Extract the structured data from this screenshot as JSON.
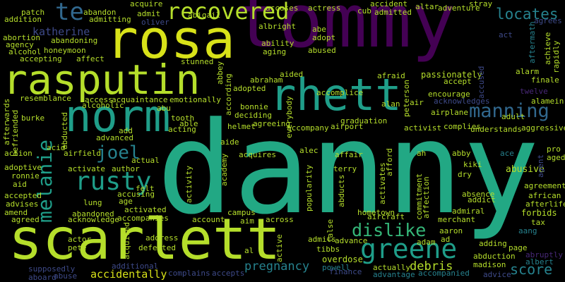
{
  "colors": {
    "background": "#000000",
    "yellow": "#d8e219",
    "lime": "#b5de2b",
    "green": "#35b779",
    "seagreen": "#22a884",
    "teal": "#1f9e89",
    "teal_blue": "#26828e",
    "blue": "#31688e",
    "indigo": "#3e4a89",
    "purple": "#482878",
    "dark_purple": "#440154"
  },
  "words": [
    {
      "text": "tommy",
      "color": "dark_purple"
    },
    {
      "text": "danny",
      "color": "seagreen"
    },
    {
      "text": "rosa",
      "color": "yellow"
    },
    {
      "text": "scarlett",
      "color": "lime"
    },
    {
      "text": "rasputin",
      "color": "lime"
    },
    {
      "text": "rhett",
      "color": "teal"
    },
    {
      "text": "norm",
      "color": "teal"
    },
    {
      "text": "recovered",
      "color": "lime"
    },
    {
      "text": "greene",
      "color": "teal"
    },
    {
      "text": "rusty",
      "color": "teal"
    },
    {
      "text": "melanie",
      "color": "teal"
    },
    {
      "text": "te",
      "color": "blue"
    },
    {
      "text": "manning",
      "color": "blue"
    },
    {
      "text": "joel",
      "color": "teal_blue"
    },
    {
      "text": "dislike",
      "color": "green"
    },
    {
      "text": "locates",
      "color": "teal_blue"
    },
    {
      "text": "katherine",
      "color": "indigo"
    },
    {
      "text": "pregnancy",
      "color": "teal_blue"
    },
    {
      "text": "score",
      "color": "teal_blue"
    },
    {
      "text": "debris",
      "color": "lime"
    },
    {
      "text": "accidentally",
      "color": "yellow"
    },
    {
      "text": "supposedly",
      "color": "indigo"
    },
    {
      "text": "aboard",
      "color": "indigo"
    },
    {
      "text": "abuse",
      "color": "indigo"
    },
    {
      "text": "additional",
      "color": "indigo"
    },
    {
      "text": "complains",
      "color": "indigo"
    },
    {
      "text": "accepts",
      "color": "indigo"
    },
    {
      "text": "overdose",
      "color": "lime"
    },
    {
      "text": "powell",
      "color": "teal_blue"
    },
    {
      "text": "finance",
      "color": "indigo"
    },
    {
      "text": "actually",
      "color": "lime"
    },
    {
      "text": "advantage",
      "color": "teal_blue"
    },
    {
      "text": "accompanied",
      "color": "teal_blue"
    },
    {
      "text": "advice",
      "color": "indigo"
    },
    {
      "text": "madison",
      "color": "lime"
    },
    {
      "text": "abduction",
      "color": "lime"
    },
    {
      "text": "adding",
      "color": "lime"
    },
    {
      "text": "page",
      "color": "lime"
    },
    {
      "text": "abruptly",
      "color": "purple"
    },
    {
      "text": "albert",
      "color": "teal_blue"
    },
    {
      "text": "aang",
      "color": "teal_blue"
    },
    {
      "text": "tax",
      "color": "lime"
    },
    {
      "text": "forbids",
      "color": "lime"
    },
    {
      "text": "afterlife",
      "color": "lime"
    },
    {
      "text": "african",
      "color": "lime"
    },
    {
      "text": "agreement",
      "color": "lime"
    },
    {
      "text": "abusive",
      "color": "lime"
    },
    {
      "text": "aged",
      "color": "lime"
    },
    {
      "text": "pro",
      "color": "lime"
    },
    {
      "text": "ace",
      "color": "teal_blue"
    },
    {
      "text": "agent",
      "color": "indigo"
    },
    {
      "text": "adult",
      "color": "lime"
    },
    {
      "text": "aggressive",
      "color": "lime"
    },
    {
      "text": "understands",
      "color": "lime"
    },
    {
      "text": "alamein",
      "color": "lime"
    },
    {
      "text": "twelve",
      "color": "purple"
    },
    {
      "text": "alarm",
      "color": "lime"
    },
    {
      "text": "finale",
      "color": "lime"
    },
    {
      "text": "rapidly",
      "color": "lime"
    },
    {
      "text": "achieve",
      "color": "lime"
    },
    {
      "text": "aftermath",
      "color": "teal_blue"
    },
    {
      "text": "agrees",
      "color": "indigo"
    },
    {
      "text": "act",
      "color": "indigo"
    },
    {
      "text": "adventure",
      "color": "lime"
    },
    {
      "text": "stray",
      "color": "lime"
    },
    {
      "text": "altar",
      "color": "lime"
    },
    {
      "text": "accident",
      "color": "lime"
    },
    {
      "text": "cub",
      "color": "lime"
    },
    {
      "text": "admitted",
      "color": "lime"
    },
    {
      "text": "actress",
      "color": "lime"
    },
    {
      "text": "accuses",
      "color": "lime"
    },
    {
      "text": "acquire",
      "color": "lime"
    },
    {
      "text": "admit",
      "color": "lime"
    },
    {
      "text": "admitting",
      "color": "lime"
    },
    {
      "text": "abigail",
      "color": "lime"
    },
    {
      "text": "abandon",
      "color": "lime"
    },
    {
      "text": "patch",
      "color": "lime"
    },
    {
      "text": "addition",
      "color": "lime"
    },
    {
      "text": "albright",
      "color": "lime"
    },
    {
      "text": "abe",
      "color": "lime"
    },
    {
      "text": "adopt",
      "color": "lime"
    },
    {
      "text": "abused",
      "color": "lime"
    },
    {
      "text": "ability",
      "color": "lime"
    },
    {
      "text": "aging",
      "color": "lime"
    },
    {
      "text": "abortion",
      "color": "lime"
    },
    {
      "text": "agency",
      "color": "lime"
    },
    {
      "text": "alcohol",
      "color": "lime"
    },
    {
      "text": "accepting",
      "color": "lime"
    },
    {
      "text": "abandoning",
      "color": "lime"
    },
    {
      "text": "honeymoon",
      "color": "lime"
    },
    {
      "text": "affect",
      "color": "lime"
    },
    {
      "text": "stunned",
      "color": "lime"
    },
    {
      "text": "abbey",
      "color": "lime"
    },
    {
      "text": "abraham",
      "color": "lime"
    },
    {
      "text": "aided",
      "color": "lime"
    },
    {
      "text": "adopted",
      "color": "lime"
    },
    {
      "text": "according",
      "color": "lime"
    },
    {
      "text": "afraid",
      "color": "lime"
    },
    {
      "text": "passionately",
      "color": "lime"
    },
    {
      "text": "accept",
      "color": "lime"
    },
    {
      "text": "accused",
      "color": "indigo"
    },
    {
      "text": "acknowledges",
      "color": "indigo"
    },
    {
      "text": "accomplice",
      "color": "lime"
    },
    {
      "text": "peterson",
      "color": "lime"
    },
    {
      "text": "encourage",
      "color": "lime"
    },
    {
      "text": "airplane",
      "color": "lime"
    },
    {
      "text": "alan",
      "color": "lime"
    },
    {
      "text": "air",
      "color": "lime"
    },
    {
      "text": "resemblance",
      "color": "lime"
    },
    {
      "text": "access",
      "color": "lime"
    },
    {
      "text": "acquaintance",
      "color": "lime"
    },
    {
      "text": "emotionally",
      "color": "lime"
    },
    {
      "text": "alcoholic",
      "color": "lime"
    },
    {
      "text": "abu",
      "color": "lime"
    },
    {
      "text": "bonnie",
      "color": "lime"
    },
    {
      "text": "deciding",
      "color": "lime"
    },
    {
      "text": "everybody",
      "color": "lime"
    },
    {
      "text": "afterwards",
      "color": "lime"
    },
    {
      "text": "burke",
      "color": "lime"
    },
    {
      "text": "tooth",
      "color": "lime"
    },
    {
      "text": "acting",
      "color": "lime"
    },
    {
      "text": "able",
      "color": "lime"
    },
    {
      "text": "add",
      "color": "lime"
    },
    {
      "text": "advanced",
      "color": "lime"
    },
    {
      "text": "abducted",
      "color": "lime"
    },
    {
      "text": "helmet",
      "color": "lime"
    },
    {
      "text": "agreeing",
      "color": "lime"
    },
    {
      "text": "accompany",
      "color": "lime"
    },
    {
      "text": "airport",
      "color": "lime"
    },
    {
      "text": "graduation",
      "color": "lime"
    },
    {
      "text": "activist",
      "color": "lime"
    },
    {
      "text": "complies",
      "color": "lime"
    },
    {
      "text": "befriended",
      "color": "lime"
    },
    {
      "text": "action",
      "color": "lime"
    },
    {
      "text": "acid",
      "color": "lime"
    },
    {
      "text": "airfield",
      "color": "lime"
    },
    {
      "text": "aide",
      "color": "lime"
    },
    {
      "text": "acquires",
      "color": "lime"
    },
    {
      "text": "academy",
      "color": "lime"
    },
    {
      "text": "alec",
      "color": "lime"
    },
    {
      "text": "affair",
      "color": "lime"
    },
    {
      "text": "afford",
      "color": "lime"
    },
    {
      "text": "ah",
      "color": "lime"
    },
    {
      "text": "kiki",
      "color": "lime"
    },
    {
      "text": "dry",
      "color": "lime"
    },
    {
      "text": "abby",
      "color": "lime"
    },
    {
      "text": "adoptive",
      "color": "lime"
    },
    {
      "text": "ronnie",
      "color": "lime"
    },
    {
      "text": "aid",
      "color": "lime"
    },
    {
      "text": "activate",
      "color": "lime"
    },
    {
      "text": "author",
      "color": "lime"
    },
    {
      "text": "actual",
      "color": "lime"
    },
    {
      "text": "activity",
      "color": "lime"
    },
    {
      "text": "terry",
      "color": "lime"
    },
    {
      "text": "activates",
      "color": "lime"
    },
    {
      "text": "abducts",
      "color": "lime"
    },
    {
      "text": "felt",
      "color": "lime"
    },
    {
      "text": "accusing",
      "color": "lime"
    },
    {
      "text": "age",
      "color": "lime"
    },
    {
      "text": "accepted",
      "color": "lime"
    },
    {
      "text": "advises",
      "color": "lime"
    },
    {
      "text": "amend",
      "color": "lime"
    },
    {
      "text": "agreed",
      "color": "lime"
    },
    {
      "text": "lung",
      "color": "lime"
    },
    {
      "text": "activated",
      "color": "lime"
    },
    {
      "text": "popularity",
      "color": "lime"
    },
    {
      "text": "commitment",
      "color": "lime"
    },
    {
      "text": "affection",
      "color": "lime"
    },
    {
      "text": "absence",
      "color": "lime"
    },
    {
      "text": "addict",
      "color": "lime"
    },
    {
      "text": "admiral",
      "color": "lime"
    },
    {
      "text": "merchant",
      "color": "lime"
    },
    {
      "text": "aaron",
      "color": "lime"
    },
    {
      "text": "ad",
      "color": "lime"
    },
    {
      "text": "adam",
      "color": "lime"
    },
    {
      "text": "hometown",
      "color": "lime"
    },
    {
      "text": "aircraft",
      "color": "lime"
    },
    {
      "text": "abandoned",
      "color": "lime"
    },
    {
      "text": "acknowledge",
      "color": "lime"
    },
    {
      "text": "accompanies",
      "color": "lime"
    },
    {
      "text": "campus",
      "color": "lime"
    },
    {
      "text": "account",
      "color": "lime"
    },
    {
      "text": "aim",
      "color": "lime"
    },
    {
      "text": "across",
      "color": "lime"
    },
    {
      "text": "false",
      "color": "lime"
    },
    {
      "text": "actor",
      "color": "lime"
    },
    {
      "text": "pete",
      "color": "lime"
    },
    {
      "text": "acquired",
      "color": "lime"
    },
    {
      "text": "address",
      "color": "lime"
    },
    {
      "text": "defeated",
      "color": "lime"
    },
    {
      "text": "al",
      "color": "lime"
    },
    {
      "text": "active",
      "color": "lime"
    },
    {
      "text": "admits",
      "color": "lime"
    },
    {
      "text": "advance",
      "color": "lime"
    },
    {
      "text": "tibbs",
      "color": "lime"
    },
    {
      "text": "oliver",
      "color": "indigo"
    }
  ]
}
